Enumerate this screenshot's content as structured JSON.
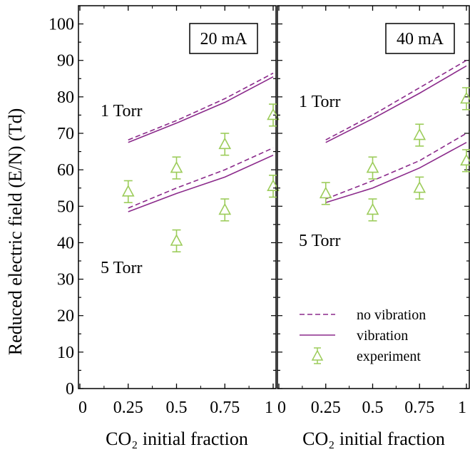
{
  "figure": {
    "ylabel": "Reduced electric field (E/N) (Td)",
    "xlabel_left": "CO₂ initial fraction",
    "xlabel_right": "CO₂ initial fraction",
    "colors": {
      "model": "#8b2a8b",
      "experiment": "#9ccc5a"
    }
  },
  "chart_data": [
    {
      "type": "line",
      "panel_label": "20 mA",
      "xlim": [
        0,
        1
      ],
      "ylim": [
        0,
        105
      ],
      "x_ticks": [
        "0",
        "0.25",
        "0.5",
        "0.75",
        "1"
      ],
      "y_ticks": [
        "0",
        "10",
        "20",
        "30",
        "40",
        "50",
        "60",
        "70",
        "80",
        "90",
        "100"
      ],
      "annotations": [
        "1 Torr",
        "5 Torr"
      ],
      "series": [
        {
          "name": "no vibration",
          "pressure": "1 Torr",
          "style": "dashed",
          "x": [
            0.25,
            0.5,
            0.75,
            1.0
          ],
          "y": [
            68.2,
            73.5,
            79.5,
            86.5
          ]
        },
        {
          "name": "vibration",
          "pressure": "1 Torr",
          "style": "solid",
          "x": [
            0.25,
            0.5,
            0.75,
            1.0
          ],
          "y": [
            67.5,
            72.8,
            78.5,
            85.5
          ]
        },
        {
          "name": "no vibration",
          "pressure": "5 Torr",
          "style": "dashed",
          "x": [
            0.25,
            0.5,
            0.75,
            1.0
          ],
          "y": [
            49.5,
            55.0,
            60.0,
            66.0
          ]
        },
        {
          "name": "vibration",
          "pressure": "5 Torr",
          "style": "solid",
          "x": [
            0.25,
            0.5,
            0.75,
            1.0
          ],
          "y": [
            48.5,
            53.5,
            58.0,
            64.0
          ]
        }
      ],
      "experiment": [
        {
          "pressure": "1 Torr",
          "x": [
            0.25,
            0.5,
            0.75,
            1.0
          ],
          "y": [
            54,
            60.5,
            67,
            75
          ],
          "err": [
            3,
            3,
            3,
            3
          ]
        },
        {
          "pressure": "5 Torr",
          "x": [
            0.5,
            0.75,
            1.0
          ],
          "y": [
            40.5,
            49,
            55.5
          ],
          "err": [
            3,
            3,
            3
          ]
        }
      ]
    },
    {
      "type": "line",
      "panel_label": "40 mA",
      "xlim": [
        0,
        1
      ],
      "ylim": [
        0,
        105
      ],
      "x_ticks": [
        "0",
        "0.25",
        "0.5",
        "0.75",
        "1"
      ],
      "annotations": [
        "1 Torr",
        "5 Torr"
      ],
      "series": [
        {
          "name": "no vibration",
          "pressure": "1 Torr",
          "style": "dashed",
          "x": [
            0.25,
            0.5,
            0.75,
            1.0
          ],
          "y": [
            68.2,
            75.0,
            82.5,
            90.0
          ]
        },
        {
          "name": "vibration",
          "pressure": "1 Torr",
          "style": "solid",
          "x": [
            0.25,
            0.5,
            0.75,
            1.0
          ],
          "y": [
            67.5,
            74.0,
            81.0,
            88.5
          ]
        },
        {
          "name": "no vibration",
          "pressure": "5 Torr",
          "style": "dashed",
          "x": [
            0.25,
            0.5,
            0.75,
            1.0
          ],
          "y": [
            52.0,
            57.0,
            62.5,
            70.0
          ]
        },
        {
          "name": "vibration",
          "pressure": "5 Torr",
          "style": "solid",
          "x": [
            0.25,
            0.5,
            0.75,
            1.0
          ],
          "y": [
            51.0,
            55.0,
            60.5,
            67.5
          ]
        }
      ],
      "experiment": [
        {
          "pressure": "1 Torr",
          "x": [
            0.25,
            0.5,
            0.75,
            1.0
          ],
          "y": [
            53.5,
            60.5,
            69.5,
            79.5
          ],
          "err": [
            3,
            3,
            3,
            3
          ]
        },
        {
          "pressure": "5 Torr",
          "x": [
            0.5,
            0.75,
            1.0
          ],
          "y": [
            49,
            55,
            62.5
          ],
          "err": [
            3,
            3,
            3
          ]
        }
      ],
      "legend": {
        "placement": "bottom-right",
        "entries": [
          "no vibration",
          "vibration",
          "experiment"
        ]
      }
    }
  ]
}
